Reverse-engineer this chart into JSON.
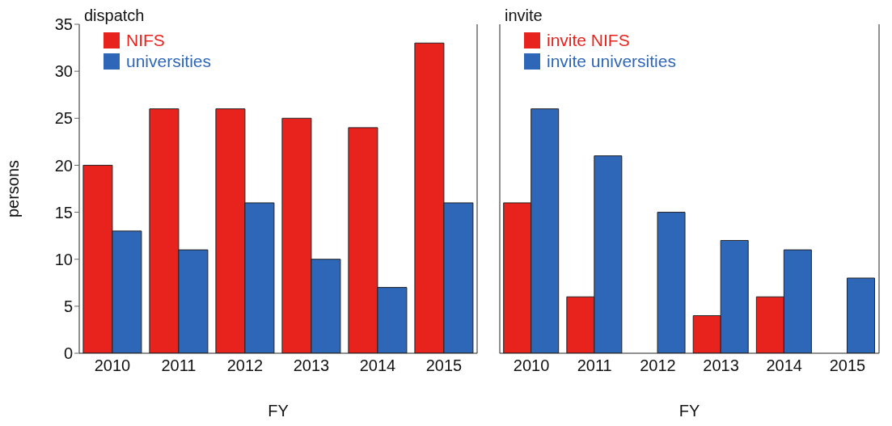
{
  "chart_data": [
    {
      "type": "bar",
      "title": "dispatch",
      "xlabel": "FY",
      "ylabel": "persons",
      "categories": [
        "2010",
        "2011",
        "2012",
        "2013",
        "2014",
        "2015"
      ],
      "series": [
        {
          "name": "NIFS",
          "color": "#e8221d",
          "values": [
            20,
            26,
            26,
            25,
            24,
            33
          ]
        },
        {
          "name": "universities",
          "color": "#2f67b8",
          "values": [
            13,
            11,
            16,
            10,
            7,
            16
          ]
        }
      ],
      "ylim": [
        0,
        35
      ],
      "yticks": [
        0,
        5,
        10,
        15,
        20,
        25,
        30,
        35
      ],
      "legend": "top left",
      "grid": false
    },
    {
      "type": "bar",
      "title": "invite",
      "xlabel": "FY",
      "categories": [
        "2010",
        "2011",
        "2012",
        "2013",
        "2014",
        "2015"
      ],
      "series": [
        {
          "name": "invite NIFS",
          "color": "#e8221d",
          "values": [
            16,
            6,
            0,
            4,
            6,
            0
          ]
        },
        {
          "name": "invite universities",
          "color": "#2f67b8",
          "values": [
            26,
            21,
            15,
            12,
            11,
            8
          ]
        }
      ],
      "ylim": [
        0,
        35
      ],
      "yticks": [
        0,
        5,
        10,
        15,
        20,
        25,
        30,
        35
      ],
      "legend": "top left",
      "grid": false,
      "tick_labels": "x"
    }
  ]
}
